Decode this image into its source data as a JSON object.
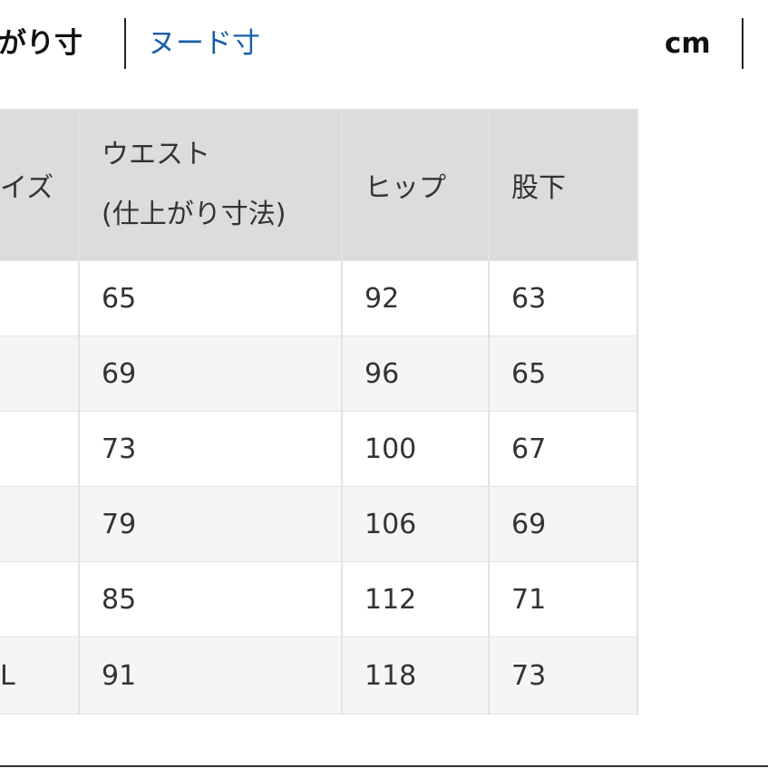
{
  "tabs": {
    "active": "がり寸",
    "other": "ヌード寸",
    "unit": "cm"
  },
  "table": {
    "header": {
      "size": "イズ",
      "waist": "ウエスト",
      "waist_note": "(仕上がり寸法)",
      "hip": "ヒップ",
      "inseam": "股下"
    },
    "rows": [
      {
        "values": [
          65,
          92,
          63
        ]
      },
      {
        "values": [
          69,
          96,
          65
        ]
      },
      {
        "values": [
          73,
          100,
          67
        ]
      },
      {
        "values": [
          79,
          106,
          69
        ]
      },
      {
        "values": [
          85,
          112,
          71
        ]
      },
      {
        "size": "L",
        "values": [
          91,
          118,
          73
        ]
      }
    ]
  }
}
